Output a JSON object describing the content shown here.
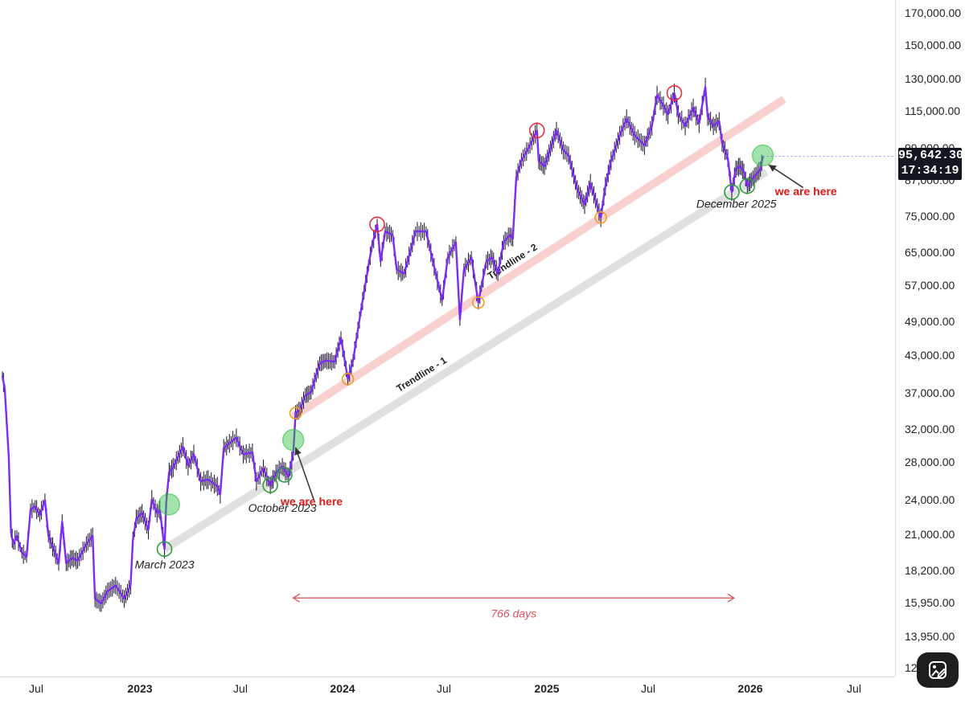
{
  "chart_data": {
    "type": "line",
    "title": "",
    "xlabel": "",
    "ylabel": "",
    "y_scale": "log",
    "ylim": [
      12000,
      178000
    ],
    "y_ticks": [
      "170,000.00",
      "150,000.00",
      "130,000.00",
      "115,000.00",
      "99,000.00",
      "87,000.00",
      "75,000.00",
      "65,000.00",
      "57,000.00",
      "49,000.00",
      "43,000.00",
      "37,000.00",
      "32,000.00",
      "28,000.00",
      "24,000.00",
      "21,000.00",
      "18,200.00",
      "15,950.00",
      "13,950.00",
      "12"
    ],
    "x_ticks": [
      {
        "label": "Jul",
        "bold": false
      },
      {
        "label": "2023",
        "bold": true
      },
      {
        "label": "Jul",
        "bold": false
      },
      {
        "label": "2024",
        "bold": true
      },
      {
        "label": "Jul",
        "bold": false
      },
      {
        "label": "2025",
        "bold": true
      },
      {
        "label": "Jul",
        "bold": false
      },
      {
        "label": "2026",
        "bold": true
      },
      {
        "label": "Jul",
        "bold": false
      }
    ],
    "series": [
      {
        "line_color": "#7b2cf0",
        "points": [
          [
            "2022-06-01",
            40000
          ],
          [
            "2022-06-05",
            38000
          ],
          [
            "2022-06-12",
            29000
          ],
          [
            "2022-06-16",
            21500
          ],
          [
            "2022-06-20",
            20500
          ],
          [
            "2022-06-26",
            21200
          ],
          [
            "2022-07-05",
            19800
          ],
          [
            "2022-07-13",
            19500
          ],
          [
            "2022-07-20",
            23500
          ],
          [
            "2022-07-28",
            23800
          ],
          [
            "2022-08-05",
            23000
          ],
          [
            "2022-08-14",
            24400
          ],
          [
            "2022-08-20",
            21200
          ],
          [
            "2022-08-30",
            20000
          ],
          [
            "2022-09-07",
            19000
          ],
          [
            "2022-09-13",
            22400
          ],
          [
            "2022-09-20",
            19000
          ],
          [
            "2022-09-30",
            19400
          ],
          [
            "2022-10-10",
            19200
          ],
          [
            "2022-10-25",
            20500
          ],
          [
            "2022-11-05",
            21200
          ],
          [
            "2022-11-09",
            16500
          ],
          [
            "2022-11-20",
            16200
          ],
          [
            "2022-12-01",
            17000
          ],
          [
            "2022-12-15",
            17400
          ],
          [
            "2022-12-30",
            16500
          ],
          [
            "2023-01-10",
            17400
          ],
          [
            "2023-01-14",
            20800
          ],
          [
            "2023-01-20",
            22700
          ],
          [
            "2023-01-30",
            23200
          ],
          [
            "2023-02-10",
            21700
          ],
          [
            "2023-02-16",
            24500
          ],
          [
            "2023-02-25",
            23200
          ],
          [
            "2023-03-02",
            23500
          ],
          [
            "2023-03-10",
            20100
          ],
          [
            "2023-03-13",
            24200
          ],
          [
            "2023-03-18",
            27300
          ],
          [
            "2023-03-25",
            27800
          ],
          [
            "2023-04-11",
            30200
          ],
          [
            "2023-04-20",
            28000
          ],
          [
            "2023-04-30",
            29300
          ],
          [
            "2023-05-12",
            26300
          ],
          [
            "2023-05-25",
            26500
          ],
          [
            "2023-06-10",
            25800
          ],
          [
            "2023-06-15",
            25000
          ],
          [
            "2023-06-21",
            30000
          ],
          [
            "2023-07-01",
            30600
          ],
          [
            "2023-07-13",
            31300
          ],
          [
            "2023-07-25",
            29300
          ],
          [
            "2023-08-10",
            29500
          ],
          [
            "2023-08-17",
            26300
          ],
          [
            "2023-08-29",
            27700
          ],
          [
            "2023-09-10",
            25900
          ],
          [
            "2023-09-20",
            27200
          ],
          [
            "2023-10-01",
            27900
          ],
          [
            "2023-10-12",
            26800
          ],
          [
            "2023-10-20",
            29500
          ],
          [
            "2023-10-23",
            33000
          ],
          [
            "2023-10-24",
            34500
          ],
          [
            "2023-11-01",
            35000
          ],
          [
            "2023-11-10",
            37000
          ],
          [
            "2023-11-20",
            37500
          ],
          [
            "2023-12-05",
            42000
          ],
          [
            "2023-12-15",
            42500
          ],
          [
            "2023-12-31",
            42300
          ],
          [
            "2024-01-11",
            46500
          ],
          [
            "2024-01-23",
            39500
          ],
          [
            "2024-02-01",
            42500
          ],
          [
            "2024-02-15",
            52000
          ],
          [
            "2024-02-28",
            62000
          ],
          [
            "2024-03-05",
            67000
          ],
          [
            "2024-03-14",
            73000
          ],
          [
            "2024-03-20",
            63000
          ],
          [
            "2024-03-28",
            71000
          ],
          [
            "2024-04-10",
            70000
          ],
          [
            "2024-04-17",
            61000
          ],
          [
            "2024-04-30",
            60000
          ],
          [
            "2024-05-20",
            71000
          ],
          [
            "2024-06-07",
            71000
          ],
          [
            "2024-06-24",
            60000
          ],
          [
            "2024-07-05",
            54000
          ],
          [
            "2024-07-15",
            64000
          ],
          [
            "2024-07-29",
            68000
          ],
          [
            "2024-08-05",
            50000
          ],
          [
            "2024-08-12",
            61000
          ],
          [
            "2024-08-25",
            64000
          ],
          [
            "2024-09-06",
            53500
          ],
          [
            "2024-09-20",
            63000
          ],
          [
            "2024-09-30",
            64000
          ],
          [
            "2024-10-10",
            60000
          ],
          [
            "2024-10-20",
            68000
          ],
          [
            "2024-10-31",
            70000
          ],
          [
            "2024-11-05",
            69000
          ],
          [
            "2024-11-11",
            88000
          ],
          [
            "2024-11-20",
            94000
          ],
          [
            "2024-12-05",
            100000
          ],
          [
            "2024-12-17",
            106000
          ],
          [
            "2024-12-20",
            94000
          ],
          [
            "2024-12-30",
            92000
          ],
          [
            "2025-01-07",
            97000
          ],
          [
            "2025-01-20",
            106000
          ],
          [
            "2025-02-01",
            98000
          ],
          [
            "2025-02-10",
            96000
          ],
          [
            "2025-02-25",
            84000
          ],
          [
            "2025-03-10",
            79000
          ],
          [
            "2025-03-20",
            86000
          ],
          [
            "2025-04-07",
            75000
          ],
          [
            "2025-04-15",
            85000
          ],
          [
            "2025-04-25",
            94000
          ],
          [
            "2025-05-10",
            104000
          ],
          [
            "2025-05-22",
            111000
          ],
          [
            "2025-06-05",
            104000
          ],
          [
            "2025-06-22",
            100000
          ],
          [
            "2025-07-05",
            108000
          ],
          [
            "2025-07-14",
            122000
          ],
          [
            "2025-07-25",
            117000
          ],
          [
            "2025-08-02",
            113000
          ],
          [
            "2025-08-13",
            123000
          ],
          [
            "2025-08-20",
            113000
          ],
          [
            "2025-09-01",
            108000
          ],
          [
            "2025-09-15",
            116000
          ],
          [
            "2025-09-25",
            109000
          ],
          [
            "2025-10-06",
            126000
          ],
          [
            "2025-10-10",
            112000
          ],
          [
            "2025-10-20",
            108000
          ],
          [
            "2025-10-30",
            110000
          ],
          [
            "2025-11-04",
            101000
          ],
          [
            "2025-11-14",
            95000
          ],
          [
            "2025-11-21",
            83000
          ],
          [
            "2025-11-28",
            91000
          ],
          [
            "2025-12-05",
            92000
          ],
          [
            "2025-12-12",
            90000
          ],
          [
            "2025-12-18",
            85000
          ],
          [
            "2025-12-25",
            87000
          ],
          [
            "2026-01-02",
            89000
          ],
          [
            "2026-01-10",
            91000
          ],
          [
            "2026-01-14",
            95642
          ]
        ]
      }
    ],
    "last_price": "95,642.30",
    "countdown": "17:34:19",
    "trendlines": [
      {
        "label": "Trendline - 1",
        "color": "#c7c7c7",
        "from": [
          "2023-03-10",
          20100
        ],
        "to": [
          "2026-01-20",
          90000
        ]
      },
      {
        "label": "Trendline - 2",
        "color": "#f4a9a9",
        "from": [
          "2023-10-20",
          34000
        ],
        "to": [
          "2026-02-20",
          120000
        ]
      }
    ],
    "markers": [
      {
        "kind": "support-touch",
        "color": "#2e9e3e",
        "at": [
          "2023-03-10",
          20100
        ]
      },
      {
        "kind": "support-touch",
        "color": "#2e9e3e",
        "at": [
          "2023-09-10",
          25900
        ]
      },
      {
        "kind": "support-touch",
        "color": "#2e9e3e",
        "at": [
          "2023-10-05",
          27000
        ]
      },
      {
        "kind": "support-touch",
        "color": "#2e9e3e",
        "at": [
          "2025-11-21",
          83000
        ]
      },
      {
        "kind": "support-touch",
        "color": "#2e9e3e",
        "at": [
          "2025-12-18",
          85000
        ]
      },
      {
        "kind": "breakout-fill",
        "color": "#38c048",
        "at": [
          "2023-03-18",
          24000
        ]
      },
      {
        "kind": "breakout-fill",
        "color": "#38c048",
        "at": [
          "2023-10-20",
          31000
        ]
      },
      {
        "kind": "breakout-fill",
        "color": "#38c048",
        "at": [
          "2026-01-14",
          96000
        ]
      },
      {
        "kind": "trendline-2-touch",
        "color": "#f09a20",
        "at": [
          "2023-10-24",
          34500
        ]
      },
      {
        "kind": "trendline-2-touch",
        "color": "#f09a20",
        "at": [
          "2024-01-23",
          39500
        ]
      },
      {
        "kind": "trendline-2-touch",
        "color": "#f09a20",
        "at": [
          "2024-09-06",
          53500
        ]
      },
      {
        "kind": "trendline-2-touch",
        "color": "#f09a20",
        "at": [
          "2025-04-07",
          75000
        ]
      },
      {
        "kind": "peak",
        "color": "#e83040",
        "at": [
          "2024-03-14",
          73000
        ]
      },
      {
        "kind": "peak",
        "color": "#e83040",
        "at": [
          "2024-12-17",
          106000
        ]
      },
      {
        "kind": "peak",
        "color": "#e83040",
        "at": [
          "2025-08-13",
          123000
        ]
      }
    ],
    "annotations": [
      {
        "text": "March 2023",
        "style": "date",
        "at": [
          "2023-03-10",
          18600
        ]
      },
      {
        "text": "October 2023",
        "style": "date",
        "at": [
          "2023-10-01",
          23300
        ]
      },
      {
        "text": "December 2025",
        "style": "date",
        "at": [
          "2025-11-29",
          78000
        ]
      },
      {
        "text": "we are here",
        "style": "here",
        "at": [
          "2023-11-21",
          23900
        ]
      },
      {
        "text": "we are here",
        "style": "here",
        "at": [
          "2026-03-30",
          82000
        ]
      }
    ],
    "arrows": [
      {
        "from": [
          "2023-11-25",
          24400
        ],
        "to": [
          "2023-10-24",
          30100
        ]
      },
      {
        "from": [
          "2026-03-25",
          84500
        ],
        "to": [
          "2026-01-24",
          92500
        ]
      }
    ],
    "span": {
      "label": "766 days",
      "from": "2023-10-20",
      "to": "2025-11-25",
      "at_price": 16550
    }
  },
  "icons": {
    "edit": "edit-image-icon"
  }
}
